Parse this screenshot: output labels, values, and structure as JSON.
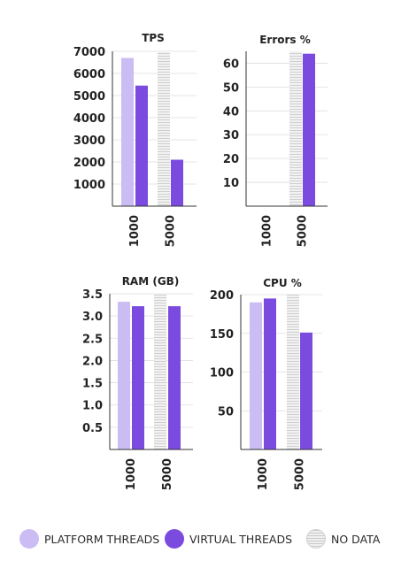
{
  "colors": {
    "platform": "#cbbcf3",
    "virtual": "#7b4be0",
    "nodata_stripe": "#cfcfcf",
    "nodata_bg": "#f2f2f2",
    "axis": "#333333",
    "grid": "#dddddd"
  },
  "legend": {
    "platform_label": "PLATFORM THREADS",
    "virtual_label": "VIRTUAL THREADS",
    "nodata_label": "NO DATA"
  },
  "chart_data": [
    {
      "type": "bar",
      "title": "TPS",
      "categories": [
        "1000",
        "5000"
      ],
      "series": [
        {
          "name": "PLATFORM THREADS",
          "values": [
            6700,
            null
          ]
        },
        {
          "name": "VIRTUAL THREADS",
          "values": [
            5450,
            2100
          ]
        }
      ],
      "yticks": [
        "7000",
        "6000",
        "5000",
        "4000",
        "3000",
        "2000",
        "1000"
      ],
      "ytick_values": [
        7000,
        6000,
        5000,
        4000,
        3000,
        2000,
        1000
      ],
      "ylim": [
        0,
        7000
      ],
      "grid": true
    },
    {
      "type": "bar",
      "title": "Errors %",
      "categories": [
        "1000",
        "5000"
      ],
      "series": [
        {
          "name": "PLATFORM THREADS",
          "values": [
            0,
            null
          ]
        },
        {
          "name": "VIRTUAL THREADS",
          "values": [
            0,
            64
          ]
        }
      ],
      "yticks": [
        "60",
        "50",
        "40",
        "30",
        "20",
        "10"
      ],
      "ytick_values": [
        60,
        50,
        40,
        30,
        20,
        10
      ],
      "ylim": [
        0,
        65
      ],
      "grid": true
    },
    {
      "type": "bar",
      "title": "RAM (GB)",
      "categories": [
        "1000",
        "5000"
      ],
      "series": [
        {
          "name": "PLATFORM THREADS",
          "values": [
            3.32,
            null
          ]
        },
        {
          "name": "VIRTUAL THREADS",
          "values": [
            3.22,
            3.22
          ]
        }
      ],
      "yticks": [
        "3.5",
        "3.0",
        "2.5",
        "2.0",
        "1.5",
        "1.0",
        "0.5"
      ],
      "ytick_values": [
        3.5,
        3.0,
        2.5,
        2.0,
        1.5,
        1.0,
        0.5
      ],
      "ylim": [
        0,
        3.5
      ],
      "grid": true
    },
    {
      "type": "bar",
      "title": "CPU %",
      "categories": [
        "1000",
        "5000"
      ],
      "series": [
        {
          "name": "PLATFORM THREADS",
          "values": [
            190,
            null
          ]
        },
        {
          "name": "VIRTUAL THREADS",
          "values": [
            195,
            151
          ]
        }
      ],
      "yticks": [
        "200",
        "150",
        "100",
        "50"
      ],
      "ytick_values": [
        200,
        150,
        100,
        50
      ],
      "ylim": [
        0,
        200
      ],
      "grid": true
    }
  ]
}
